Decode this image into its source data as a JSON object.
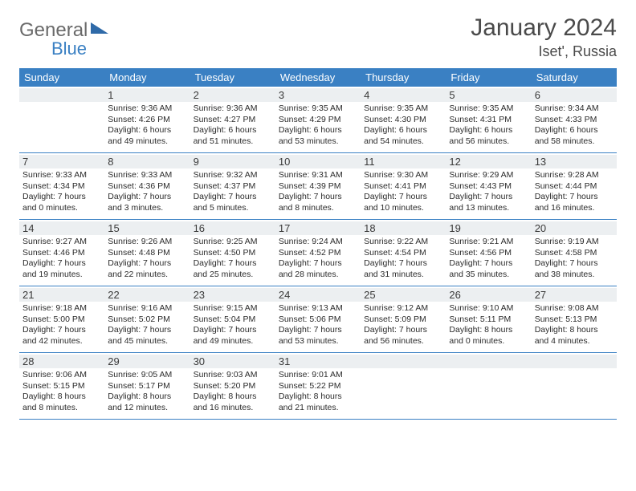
{
  "logo": {
    "text1": "General",
    "text2": "Blue"
  },
  "title": "January 2024",
  "location": "Iset', Russia",
  "colors": {
    "header_bg": "#3a80c3",
    "header_fg": "#ffffff",
    "num_bg": "#eceff1",
    "rule": "#3a80c3",
    "text": "#333333",
    "logo_gray": "#6a6a6a",
    "logo_blue": "#3a80c3"
  },
  "typography": {
    "title_fontsize": 30,
    "location_fontsize": 18,
    "dayheader_fontsize": 13,
    "daynum_fontsize": 13,
    "body_fontsize": 10.5
  },
  "day_headers": [
    "Sunday",
    "Monday",
    "Tuesday",
    "Wednesday",
    "Thursday",
    "Friday",
    "Saturday"
  ],
  "weeks": [
    [
      {
        "empty": true
      },
      {
        "num": "1",
        "sunrise": "Sunrise: 9:36 AM",
        "sunset": "Sunset: 4:26 PM",
        "day1": "Daylight: 6 hours",
        "day2": "and 49 minutes."
      },
      {
        "num": "2",
        "sunrise": "Sunrise: 9:36 AM",
        "sunset": "Sunset: 4:27 PM",
        "day1": "Daylight: 6 hours",
        "day2": "and 51 minutes."
      },
      {
        "num": "3",
        "sunrise": "Sunrise: 9:35 AM",
        "sunset": "Sunset: 4:29 PM",
        "day1": "Daylight: 6 hours",
        "day2": "and 53 minutes."
      },
      {
        "num": "4",
        "sunrise": "Sunrise: 9:35 AM",
        "sunset": "Sunset: 4:30 PM",
        "day1": "Daylight: 6 hours",
        "day2": "and 54 minutes."
      },
      {
        "num": "5",
        "sunrise": "Sunrise: 9:35 AM",
        "sunset": "Sunset: 4:31 PM",
        "day1": "Daylight: 6 hours",
        "day2": "and 56 minutes."
      },
      {
        "num": "6",
        "sunrise": "Sunrise: 9:34 AM",
        "sunset": "Sunset: 4:33 PM",
        "day1": "Daylight: 6 hours",
        "day2": "and 58 minutes."
      }
    ],
    [
      {
        "num": "7",
        "sunrise": "Sunrise: 9:33 AM",
        "sunset": "Sunset: 4:34 PM",
        "day1": "Daylight: 7 hours",
        "day2": "and 0 minutes."
      },
      {
        "num": "8",
        "sunrise": "Sunrise: 9:33 AM",
        "sunset": "Sunset: 4:36 PM",
        "day1": "Daylight: 7 hours",
        "day2": "and 3 minutes."
      },
      {
        "num": "9",
        "sunrise": "Sunrise: 9:32 AM",
        "sunset": "Sunset: 4:37 PM",
        "day1": "Daylight: 7 hours",
        "day2": "and 5 minutes."
      },
      {
        "num": "10",
        "sunrise": "Sunrise: 9:31 AM",
        "sunset": "Sunset: 4:39 PM",
        "day1": "Daylight: 7 hours",
        "day2": "and 8 minutes."
      },
      {
        "num": "11",
        "sunrise": "Sunrise: 9:30 AM",
        "sunset": "Sunset: 4:41 PM",
        "day1": "Daylight: 7 hours",
        "day2": "and 10 minutes."
      },
      {
        "num": "12",
        "sunrise": "Sunrise: 9:29 AM",
        "sunset": "Sunset: 4:43 PM",
        "day1": "Daylight: 7 hours",
        "day2": "and 13 minutes."
      },
      {
        "num": "13",
        "sunrise": "Sunrise: 9:28 AM",
        "sunset": "Sunset: 4:44 PM",
        "day1": "Daylight: 7 hours",
        "day2": "and 16 minutes."
      }
    ],
    [
      {
        "num": "14",
        "sunrise": "Sunrise: 9:27 AM",
        "sunset": "Sunset: 4:46 PM",
        "day1": "Daylight: 7 hours",
        "day2": "and 19 minutes."
      },
      {
        "num": "15",
        "sunrise": "Sunrise: 9:26 AM",
        "sunset": "Sunset: 4:48 PM",
        "day1": "Daylight: 7 hours",
        "day2": "and 22 minutes."
      },
      {
        "num": "16",
        "sunrise": "Sunrise: 9:25 AM",
        "sunset": "Sunset: 4:50 PM",
        "day1": "Daylight: 7 hours",
        "day2": "and 25 minutes."
      },
      {
        "num": "17",
        "sunrise": "Sunrise: 9:24 AM",
        "sunset": "Sunset: 4:52 PM",
        "day1": "Daylight: 7 hours",
        "day2": "and 28 minutes."
      },
      {
        "num": "18",
        "sunrise": "Sunrise: 9:22 AM",
        "sunset": "Sunset: 4:54 PM",
        "day1": "Daylight: 7 hours",
        "day2": "and 31 minutes."
      },
      {
        "num": "19",
        "sunrise": "Sunrise: 9:21 AM",
        "sunset": "Sunset: 4:56 PM",
        "day1": "Daylight: 7 hours",
        "day2": "and 35 minutes."
      },
      {
        "num": "20",
        "sunrise": "Sunrise: 9:19 AM",
        "sunset": "Sunset: 4:58 PM",
        "day1": "Daylight: 7 hours",
        "day2": "and 38 minutes."
      }
    ],
    [
      {
        "num": "21",
        "sunrise": "Sunrise: 9:18 AM",
        "sunset": "Sunset: 5:00 PM",
        "day1": "Daylight: 7 hours",
        "day2": "and 42 minutes."
      },
      {
        "num": "22",
        "sunrise": "Sunrise: 9:16 AM",
        "sunset": "Sunset: 5:02 PM",
        "day1": "Daylight: 7 hours",
        "day2": "and 45 minutes."
      },
      {
        "num": "23",
        "sunrise": "Sunrise: 9:15 AM",
        "sunset": "Sunset: 5:04 PM",
        "day1": "Daylight: 7 hours",
        "day2": "and 49 minutes."
      },
      {
        "num": "24",
        "sunrise": "Sunrise: 9:13 AM",
        "sunset": "Sunset: 5:06 PM",
        "day1": "Daylight: 7 hours",
        "day2": "and 53 minutes."
      },
      {
        "num": "25",
        "sunrise": "Sunrise: 9:12 AM",
        "sunset": "Sunset: 5:09 PM",
        "day1": "Daylight: 7 hours",
        "day2": "and 56 minutes."
      },
      {
        "num": "26",
        "sunrise": "Sunrise: 9:10 AM",
        "sunset": "Sunset: 5:11 PM",
        "day1": "Daylight: 8 hours",
        "day2": "and 0 minutes."
      },
      {
        "num": "27",
        "sunrise": "Sunrise: 9:08 AM",
        "sunset": "Sunset: 5:13 PM",
        "day1": "Daylight: 8 hours",
        "day2": "and 4 minutes."
      }
    ],
    [
      {
        "num": "28",
        "sunrise": "Sunrise: 9:06 AM",
        "sunset": "Sunset: 5:15 PM",
        "day1": "Daylight: 8 hours",
        "day2": "and 8 minutes."
      },
      {
        "num": "29",
        "sunrise": "Sunrise: 9:05 AM",
        "sunset": "Sunset: 5:17 PM",
        "day1": "Daylight: 8 hours",
        "day2": "and 12 minutes."
      },
      {
        "num": "30",
        "sunrise": "Sunrise: 9:03 AM",
        "sunset": "Sunset: 5:20 PM",
        "day1": "Daylight: 8 hours",
        "day2": "and 16 minutes."
      },
      {
        "num": "31",
        "sunrise": "Sunrise: 9:01 AM",
        "sunset": "Sunset: 5:22 PM",
        "day1": "Daylight: 8 hours",
        "day2": "and 21 minutes."
      },
      {
        "empty": true
      },
      {
        "empty": true
      },
      {
        "empty": true
      }
    ]
  ]
}
